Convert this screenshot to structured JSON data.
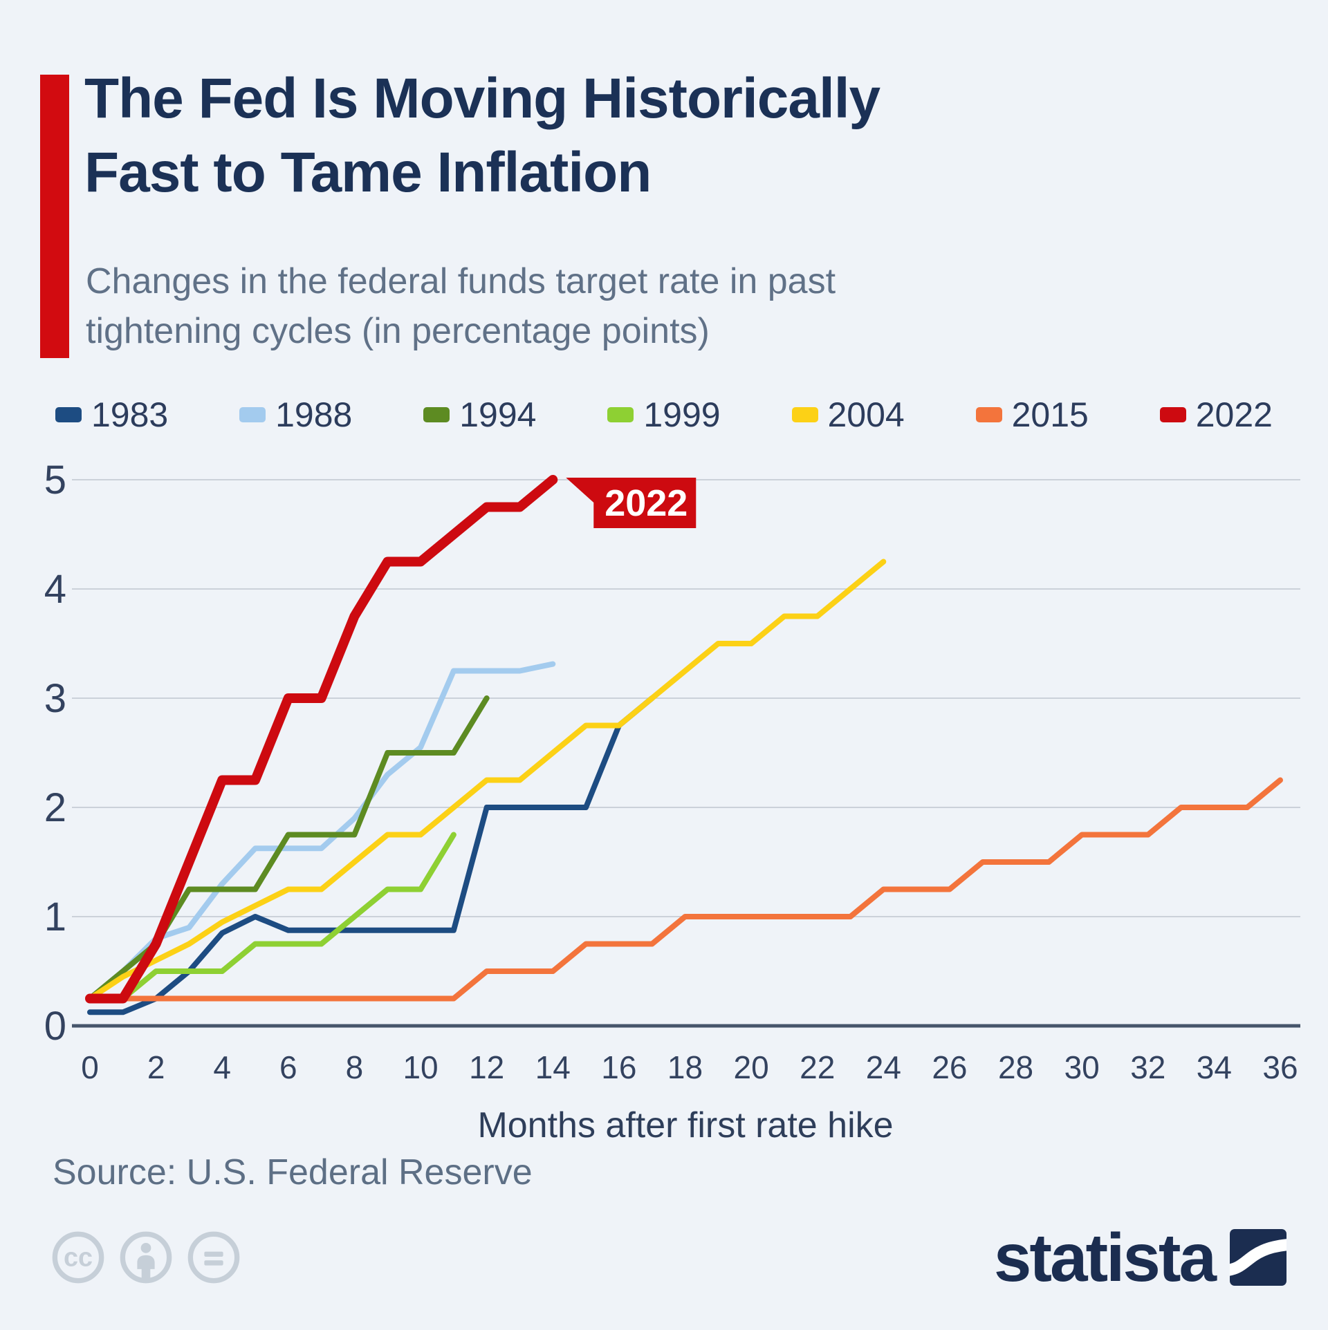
{
  "header": {
    "title": "The Fed Is Moving Historically\nFast to Tame Inflation",
    "subtitle": "Changes in the federal funds target rate in past\ntightening cycles (in percentage points)",
    "accent_color": "#d20b10"
  },
  "chart_data": {
    "type": "line",
    "title": "The Fed Is Moving Historically Fast to Tame Inflation",
    "subtitle": "Changes in the federal funds target rate in past tightening cycles (in percentage points)",
    "xlabel": "Months after first rate hike",
    "ylabel": "",
    "xlim": [
      0,
      36
    ],
    "ylim": [
      0,
      5
    ],
    "xticks": [
      0,
      2,
      4,
      6,
      8,
      10,
      12,
      14,
      16,
      18,
      20,
      22,
      24,
      26,
      28,
      30,
      32,
      34,
      36
    ],
    "yticks": [
      0,
      1,
      2,
      3,
      4,
      5
    ],
    "grid": true,
    "legend_position": "top",
    "callout": {
      "label": "2022",
      "x": 14,
      "y": 5,
      "color": "#cd0a10",
      "text_color": "#ffffff"
    },
    "series": [
      {
        "name": "1983",
        "color": "#1d4c82",
        "highlight": false,
        "points": [
          [
            0,
            0.125
          ],
          [
            1,
            0.125
          ],
          [
            2,
            0.25
          ],
          [
            3,
            0.5
          ],
          [
            4,
            0.85
          ],
          [
            5,
            1.0
          ],
          [
            6,
            0.875
          ],
          [
            7,
            0.875
          ],
          [
            8,
            0.875
          ],
          [
            9,
            0.875
          ],
          [
            10,
            0.875
          ],
          [
            11,
            0.875
          ],
          [
            12,
            2.0
          ],
          [
            13,
            2.0
          ],
          [
            14,
            2.0
          ],
          [
            15,
            2.0
          ],
          [
            16,
            2.75
          ],
          [
            17,
            3.0
          ]
        ]
      },
      {
        "name": "1988",
        "color": "#a3cbee",
        "highlight": false,
        "points": [
          [
            0,
            0.25
          ],
          [
            1,
            0.5
          ],
          [
            2,
            0.8
          ],
          [
            3,
            0.9
          ],
          [
            4,
            1.3
          ],
          [
            5,
            1.625
          ],
          [
            6,
            1.625
          ],
          [
            7,
            1.625
          ],
          [
            8,
            1.9
          ],
          [
            9,
            2.3
          ],
          [
            10,
            2.55
          ],
          [
            11,
            3.25
          ],
          [
            12,
            3.25
          ],
          [
            13,
            3.25
          ],
          [
            14,
            3.3125
          ]
        ]
      },
      {
        "name": "1994",
        "color": "#5d8b22",
        "highlight": false,
        "points": [
          [
            0,
            0.25
          ],
          [
            1,
            0.5
          ],
          [
            2,
            0.75
          ],
          [
            3,
            1.25
          ],
          [
            4,
            1.25
          ],
          [
            5,
            1.25
          ],
          [
            6,
            1.75
          ],
          [
            7,
            1.75
          ],
          [
            8,
            1.75
          ],
          [
            9,
            2.5
          ],
          [
            10,
            2.5
          ],
          [
            11,
            2.5
          ],
          [
            12,
            3.0
          ]
        ]
      },
      {
        "name": "1999",
        "color": "#8ed033",
        "highlight": false,
        "points": [
          [
            0,
            0.25
          ],
          [
            1,
            0.25
          ],
          [
            2,
            0.5
          ],
          [
            3,
            0.5
          ],
          [
            4,
            0.5
          ],
          [
            5,
            0.75
          ],
          [
            6,
            0.75
          ],
          [
            7,
            0.75
          ],
          [
            8,
            1.0
          ],
          [
            9,
            1.25
          ],
          [
            10,
            1.25
          ],
          [
            11,
            1.75
          ]
        ]
      },
      {
        "name": "2004",
        "color": "#fcd116",
        "highlight": false,
        "points": [
          [
            0,
            0.25
          ],
          [
            1,
            0.45
          ],
          [
            2,
            0.6
          ],
          [
            3,
            0.75
          ],
          [
            4,
            0.95
          ],
          [
            5,
            1.1
          ],
          [
            6,
            1.25
          ],
          [
            7,
            1.25
          ],
          [
            8,
            1.5
          ],
          [
            9,
            1.75
          ],
          [
            10,
            1.75
          ],
          [
            11,
            2.0
          ],
          [
            12,
            2.25
          ],
          [
            13,
            2.25
          ],
          [
            14,
            2.5
          ],
          [
            15,
            2.75
          ],
          [
            16,
            2.75
          ],
          [
            17,
            3.0
          ],
          [
            18,
            3.25
          ],
          [
            19,
            3.5
          ],
          [
            20,
            3.5
          ],
          [
            21,
            3.75
          ],
          [
            22,
            3.75
          ],
          [
            23,
            4.0
          ],
          [
            24,
            4.25
          ]
        ]
      },
      {
        "name": "2015",
        "color": "#f3743c",
        "highlight": false,
        "points": [
          [
            0,
            0.25
          ],
          [
            11,
            0.25
          ],
          [
            12,
            0.5
          ],
          [
            14,
            0.5
          ],
          [
            15,
            0.75
          ],
          [
            17,
            0.75
          ],
          [
            18,
            1.0
          ],
          [
            23,
            1.0
          ],
          [
            24,
            1.25
          ],
          [
            26,
            1.25
          ],
          [
            27,
            1.5
          ],
          [
            29,
            1.5
          ],
          [
            30,
            1.75
          ],
          [
            32,
            1.75
          ],
          [
            33,
            2.0
          ],
          [
            35,
            2.0
          ],
          [
            36,
            2.25
          ]
        ]
      },
      {
        "name": "2022",
        "color": "#cd0a10",
        "highlight": true,
        "points": [
          [
            0,
            0.25
          ],
          [
            1,
            0.25
          ],
          [
            2,
            0.75
          ],
          [
            3,
            1.5
          ],
          [
            4,
            2.25
          ],
          [
            5,
            2.25
          ],
          [
            6,
            3.0
          ],
          [
            7,
            3.0
          ],
          [
            8,
            3.75
          ],
          [
            9,
            4.25
          ],
          [
            10,
            4.25
          ],
          [
            11,
            4.5
          ],
          [
            12,
            4.75
          ],
          [
            13,
            4.75
          ],
          [
            14,
            5.0
          ]
        ]
      }
    ],
    "style": {
      "grid_color": "#cbd1d9",
      "axis_color": "#46556b",
      "tick_label_color": "#33425f",
      "y_tick_font_size": 58,
      "x_tick_font_size": 46,
      "line_width": 8,
      "highlight_line_width": 14
    }
  },
  "footer": {
    "source": "Source: U.S. Federal Reserve",
    "brand": "statista",
    "license_icons": [
      "cc-icon",
      "attribution-person-icon",
      "no-derivatives-icon"
    ]
  }
}
